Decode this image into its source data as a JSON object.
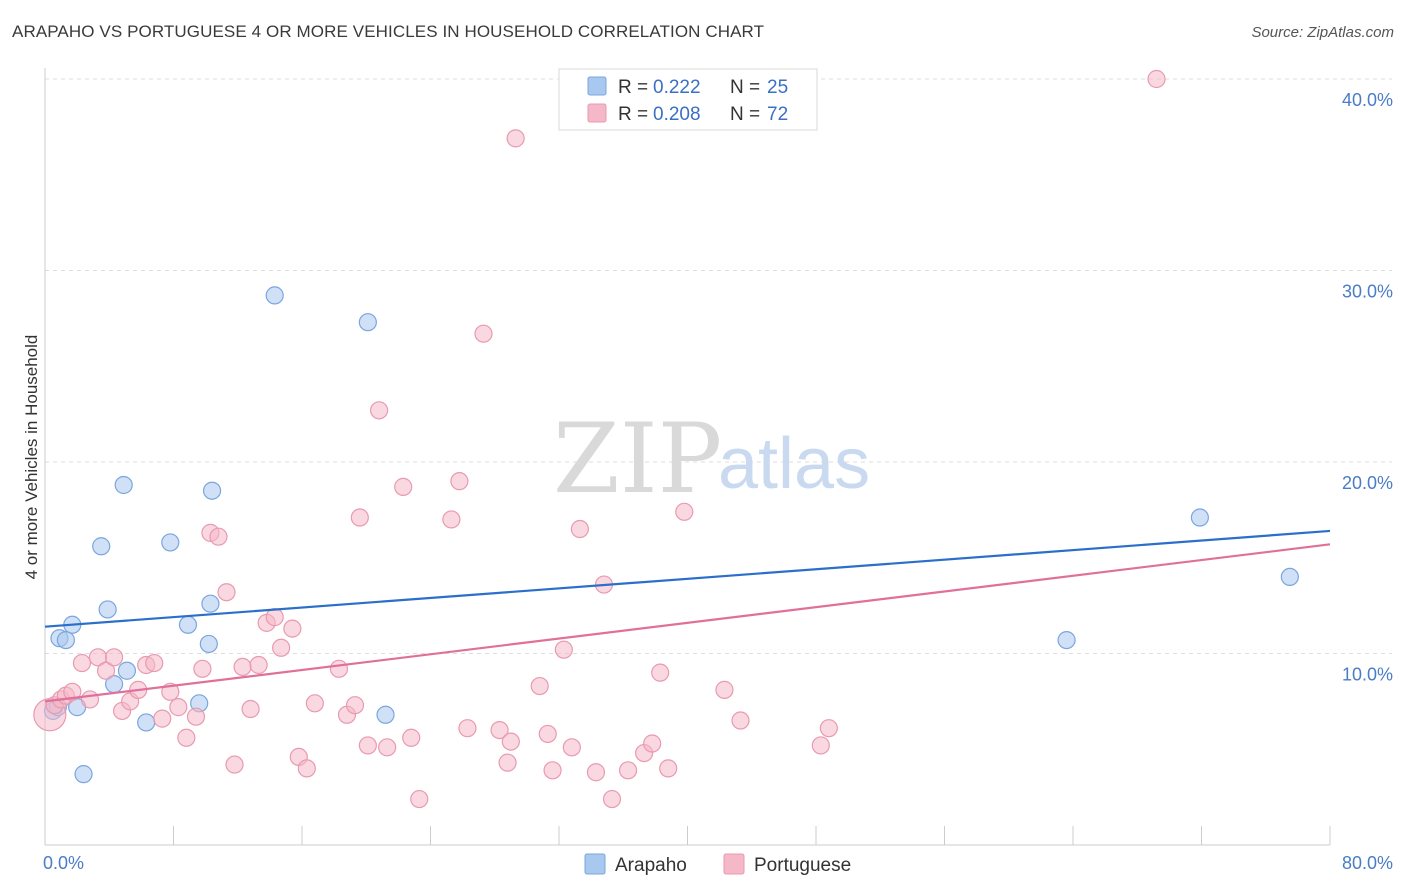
{
  "title": "ARAPAHO VS PORTUGUESE 4 OR MORE VEHICLES IN HOUSEHOLD CORRELATION CHART",
  "source": "Source: ZipAtlas.com",
  "watermark": {
    "zip": "ZIP",
    "atlas": "atlas"
  },
  "legend": {
    "r_label": "R =",
    "n_label": "N =",
    "rows": [
      {
        "r": "0.222",
        "n": "25",
        "color": "#a9c8f0"
      },
      {
        "r": "0.208",
        "n": "72",
        "color": "#f5b8c8"
      }
    ]
  },
  "chart_data": {
    "type": "scatter",
    "title": "ARAPAHO VS PORTUGUESE 4 OR MORE VEHICLES IN HOUSEHOLD CORRELATION CHART",
    "xlabel": "",
    "ylabel": "4 or more Vehicles in Household",
    "xlim": [
      0,
      80
    ],
    "ylim": [
      0,
      40
    ],
    "x_tick_labels": [
      "0.0%",
      "80.0%"
    ],
    "y_ticks": [
      10,
      20,
      30,
      40
    ],
    "y_tick_labels": [
      "10.0%",
      "20.0%",
      "30.0%",
      "40.0%"
    ],
    "grid": true,
    "legend_position": "top-center",
    "series": [
      {
        "name": "Arapaho",
        "color": "#a9c8f0",
        "stroke": "#7aa6dc",
        "line_color": "#2a6fc9",
        "trend": [
          [
            0,
            11.4
          ],
          [
            80,
            16.4
          ]
        ],
        "points": [
          [
            0.5,
            7.0
          ],
          [
            0.8,
            7.2
          ],
          [
            0.9,
            10.8
          ],
          [
            1.3,
            10.7
          ],
          [
            1.7,
            11.5
          ],
          [
            2.0,
            7.2
          ],
          [
            2.4,
            3.7
          ],
          [
            3.5,
            15.6
          ],
          [
            3.9,
            12.3
          ],
          [
            4.3,
            8.4
          ],
          [
            4.9,
            18.8
          ],
          [
            5.1,
            9.1
          ],
          [
            6.3,
            6.4
          ],
          [
            7.8,
            15.8
          ],
          [
            8.9,
            11.5
          ],
          [
            9.6,
            7.4
          ],
          [
            10.2,
            10.5
          ],
          [
            10.3,
            12.6
          ],
          [
            10.4,
            18.5
          ],
          [
            14.3,
            28.7
          ],
          [
            20.1,
            27.3
          ],
          [
            21.2,
            6.8
          ],
          [
            63.6,
            10.7
          ],
          [
            71.9,
            17.1
          ],
          [
            77.5,
            14.0
          ]
        ]
      },
      {
        "name": "Portuguese",
        "color": "#f5b8c8",
        "stroke": "#e89ab0",
        "line_color": "#e0709a",
        "trend": [
          [
            0,
            7.5
          ],
          [
            80,
            15.7
          ]
        ],
        "points": [
          [
            0.3,
            6.8
          ],
          [
            0.6,
            7.3
          ],
          [
            1.0,
            7.6
          ],
          [
            1.3,
            7.8
          ],
          [
            1.7,
            8.0
          ],
          [
            2.3,
            9.5
          ],
          [
            2.8,
            7.6
          ],
          [
            3.3,
            9.8
          ],
          [
            3.8,
            9.1
          ],
          [
            4.3,
            9.8
          ],
          [
            4.8,
            7.0
          ],
          [
            5.3,
            7.5
          ],
          [
            5.8,
            8.1
          ],
          [
            6.3,
            9.4
          ],
          [
            6.8,
            9.5
          ],
          [
            7.3,
            6.6
          ],
          [
            7.8,
            8.0
          ],
          [
            8.3,
            7.2
          ],
          [
            8.8,
            5.6
          ],
          [
            9.4,
            6.7
          ],
          [
            9.8,
            9.2
          ],
          [
            10.3,
            16.3
          ],
          [
            10.8,
            16.1
          ],
          [
            11.3,
            13.2
          ],
          [
            11.8,
            4.2
          ],
          [
            12.3,
            9.3
          ],
          [
            12.8,
            7.1
          ],
          [
            13.3,
            9.4
          ],
          [
            13.8,
            11.6
          ],
          [
            14.3,
            11.9
          ],
          [
            14.7,
            10.3
          ],
          [
            15.4,
            11.3
          ],
          [
            15.8,
            4.6
          ],
          [
            16.3,
            4.0
          ],
          [
            16.8,
            7.4
          ],
          [
            18.3,
            9.2
          ],
          [
            18.8,
            6.8
          ],
          [
            19.3,
            7.3
          ],
          [
            19.6,
            17.1
          ],
          [
            20.1,
            5.2
          ],
          [
            20.8,
            22.7
          ],
          [
            21.3,
            5.1
          ],
          [
            22.3,
            18.7
          ],
          [
            22.8,
            5.6
          ],
          [
            23.3,
            2.4
          ],
          [
            25.3,
            17.0
          ],
          [
            25.8,
            19.0
          ],
          [
            26.3,
            6.1
          ],
          [
            27.3,
            26.7
          ],
          [
            28.3,
            6.0
          ],
          [
            28.8,
            4.3
          ],
          [
            29.0,
            5.4
          ],
          [
            29.3,
            36.9
          ],
          [
            30.8,
            8.3
          ],
          [
            31.3,
            5.8
          ],
          [
            31.6,
            3.9
          ],
          [
            32.3,
            10.2
          ],
          [
            32.8,
            5.1
          ],
          [
            33.3,
            16.5
          ],
          [
            34.3,
            3.8
          ],
          [
            34.8,
            13.6
          ],
          [
            35.3,
            2.4
          ],
          [
            36.3,
            3.9
          ],
          [
            37.3,
            4.8
          ],
          [
            37.8,
            5.3
          ],
          [
            38.3,
            9.0
          ],
          [
            38.8,
            4.0
          ],
          [
            39.8,
            17.4
          ],
          [
            42.3,
            8.1
          ],
          [
            43.3,
            6.5
          ],
          [
            48.3,
            5.2
          ],
          [
            48.8,
            6.1
          ],
          [
            69.2,
            40.0
          ]
        ]
      }
    ]
  },
  "bottom_legend": [
    {
      "label": "Arapaho",
      "color": "#a9c8f0"
    },
    {
      "label": "Portuguese",
      "color": "#f5b8c8"
    }
  ]
}
